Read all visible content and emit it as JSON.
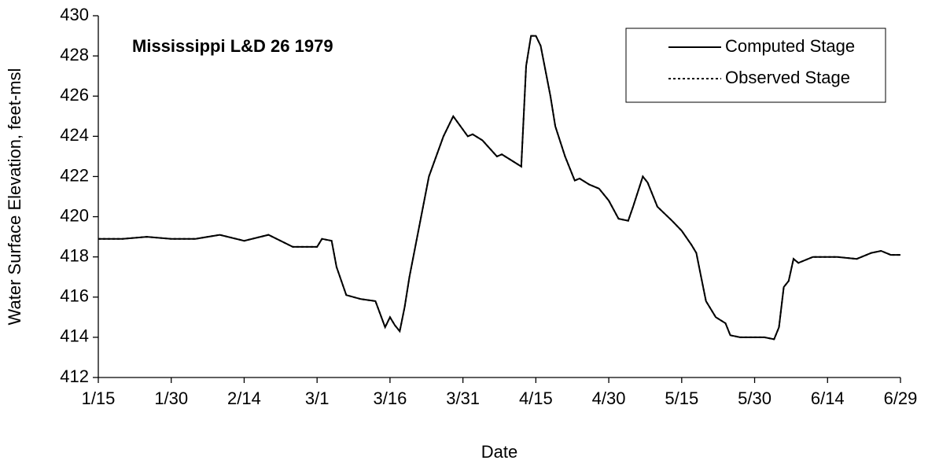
{
  "chart_data": {
    "type": "line",
    "title": "Mississippi L&D 26 1979",
    "x_label": "Date",
    "y_label": "Water Surface Elevation, feet-msl",
    "x": [
      "1/15",
      "1/20",
      "1/25",
      "1/30",
      "2/4",
      "2/9",
      "2/14",
      "2/19",
      "2/24",
      "3/1",
      "3/2",
      "3/4",
      "3/5",
      "3/7",
      "3/10",
      "3/13",
      "3/15",
      "3/16",
      "3/17",
      "3/18",
      "3/19",
      "3/20",
      "3/22",
      "3/24",
      "3/27",
      "3/29",
      "4/1",
      "4/2",
      "4/4",
      "4/7",
      "4/8",
      "4/10",
      "4/12",
      "4/13",
      "4/14",
      "4/15",
      "4/16",
      "4/18",
      "4/19",
      "4/21",
      "4/23",
      "4/24",
      "4/26",
      "4/28",
      "4/30",
      "5/2",
      "5/4",
      "5/5",
      "5/7",
      "5/8",
      "5/10",
      "5/13",
      "5/15",
      "5/17",
      "5/18",
      "5/19",
      "5/20",
      "5/22",
      "5/24",
      "5/25",
      "5/27",
      "6/1",
      "6/3",
      "6/4",
      "6/5",
      "6/6",
      "6/7",
      "6/8",
      "6/11",
      "6/16",
      "6/20",
      "6/23",
      "6/25",
      "6/27",
      "6/29"
    ],
    "series": [
      {
        "name": "Computed Stage",
        "color": "#000000",
        "dash": "solid",
        "values": [
          418.9,
          418.9,
          419.0,
          418.9,
          418.9,
          419.1,
          418.8,
          419.1,
          418.5,
          418.5,
          418.9,
          418.8,
          417.5,
          416.1,
          415.9,
          415.8,
          414.5,
          415.0,
          414.6,
          414.3,
          415.5,
          417.0,
          419.5,
          422.0,
          424.0,
          425.0,
          424.0,
          424.1,
          423.8,
          423.0,
          423.1,
          422.8,
          422.5,
          427.5,
          429.0,
          429.0,
          428.5,
          426.0,
          424.5,
          423.0,
          421.8,
          421.9,
          421.6,
          421.4,
          420.8,
          419.9,
          419.8,
          420.5,
          422.0,
          421.7,
          420.5,
          419.8,
          419.3,
          418.6,
          418.2,
          417.0,
          415.8,
          415.0,
          414.7,
          414.1,
          414.0,
          414.0,
          413.9,
          414.5,
          416.5,
          416.8,
          417.9,
          417.7,
          418.0,
          418.0,
          417.9,
          418.2,
          418.3,
          418.1,
          418.1
        ]
      },
      {
        "name": "Observed Stage",
        "color": "#000000",
        "dash": "dotted",
        "values": [
          418.9,
          418.9,
          419.0,
          418.9,
          418.9,
          419.1,
          418.8,
          419.1,
          418.5,
          418.5,
          418.9,
          418.8,
          417.5,
          416.1,
          415.9,
          415.8,
          414.5,
          415.0,
          414.6,
          414.3,
          415.5,
          417.0,
          419.5,
          422.0,
          424.0,
          425.0,
          424.0,
          424.1,
          423.8,
          423.0,
          423.1,
          422.8,
          422.5,
          427.5,
          429.0,
          429.0,
          428.5,
          426.0,
          424.5,
          423.0,
          421.8,
          421.9,
          421.6,
          421.4,
          420.8,
          419.9,
          419.8,
          420.5,
          422.0,
          421.7,
          420.5,
          419.8,
          419.3,
          418.6,
          418.2,
          417.0,
          415.8,
          415.0,
          414.7,
          414.1,
          414.0,
          414.0,
          413.9,
          414.5,
          416.5,
          416.8,
          417.9,
          417.7,
          418.0,
          418.0,
          417.9,
          418.2,
          418.3,
          418.1,
          418.1
        ]
      }
    ],
    "xlim": [
      "1/15",
      "6/29"
    ],
    "xticks": [
      "1/15",
      "1/30",
      "2/14",
      "3/1",
      "3/16",
      "3/31",
      "4/15",
      "4/30",
      "5/15",
      "5/30",
      "6/14",
      "6/29"
    ],
    "ylim": [
      412,
      430
    ],
    "yticks": [
      412,
      414,
      416,
      418,
      420,
      422,
      424,
      426,
      428,
      430
    ],
    "grid": false,
    "legend": "top-right"
  }
}
